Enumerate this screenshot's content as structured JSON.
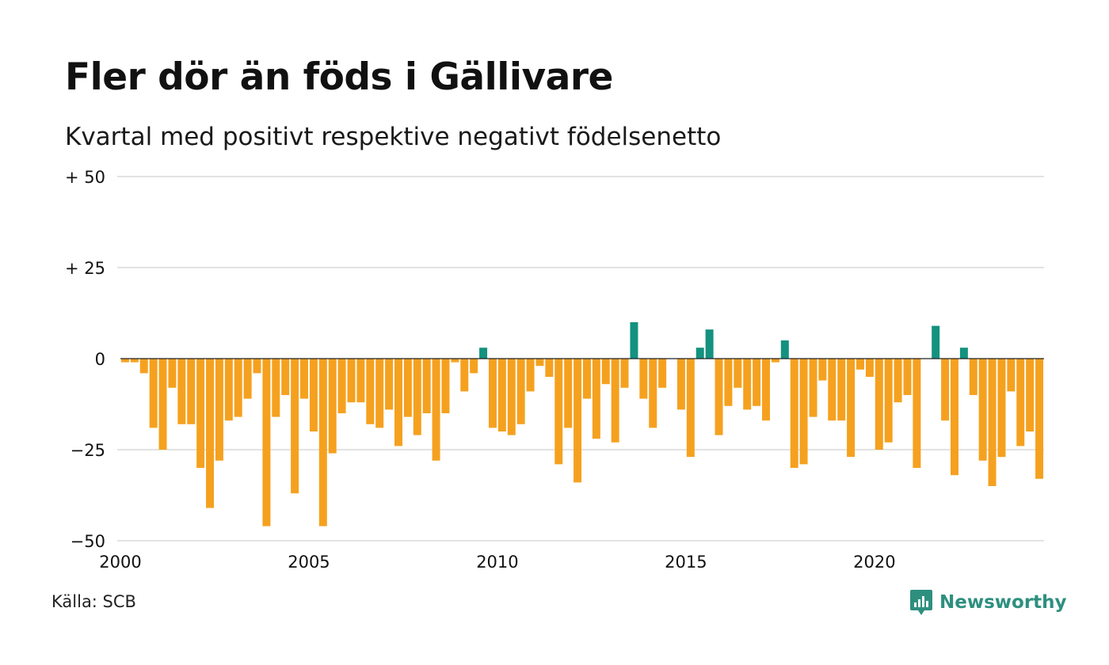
{
  "title": "Fler dör än föds i Gällivare",
  "subtitle": "Kvartal med positivt respektive negativt födelsenetto",
  "source": "Källa: SCB",
  "brand": {
    "name": "Newsworthy",
    "icon": "newsworthy-logo-icon",
    "color": "#2e8f7f"
  },
  "colors": {
    "positive": "#14917f",
    "negative": "#f5a11f",
    "grid": "#e3e3e3",
    "zero_line": "#222222"
  },
  "chart_data": {
    "type": "bar",
    "xlim": [
      2000,
      2024.5
    ],
    "ylim": [
      -50,
      50
    ],
    "grid": true,
    "y_ticks": [
      {
        "value": 50,
        "label": "+ 50"
      },
      {
        "value": 25,
        "label": "+ 25"
      },
      {
        "value": 0,
        "label": "0"
      },
      {
        "value": -25,
        "label": "−25"
      },
      {
        "value": -50,
        "label": "−50"
      }
    ],
    "x_ticks": [
      {
        "value": 2000,
        "label": "2000"
      },
      {
        "value": 2005,
        "label": "2005"
      },
      {
        "value": 2010,
        "label": "2010"
      },
      {
        "value": 2015,
        "label": "2015"
      },
      {
        "value": 2020,
        "label": "2020"
      }
    ],
    "categories": [
      "2000 K1",
      "2000 K2",
      "2000 K3",
      "2000 K4",
      "2001 K1",
      "2001 K2",
      "2001 K3",
      "2001 K4",
      "2002 K1",
      "2002 K2",
      "2002 K3",
      "2002 K4",
      "2003 K1",
      "2003 K2",
      "2003 K3",
      "2003 K4",
      "2004 K1",
      "2004 K2",
      "2004 K3",
      "2004 K4",
      "2005 K1",
      "2005 K2",
      "2005 K3",
      "2005 K4",
      "2006 K1",
      "2006 K2",
      "2006 K3",
      "2006 K4",
      "2007 K1",
      "2007 K2",
      "2007 K3",
      "2007 K4",
      "2008 K1",
      "2008 K2",
      "2008 K3",
      "2008 K4",
      "2009 K1",
      "2009 K2",
      "2009 K3",
      "2009 K4",
      "2010 K1",
      "2010 K2",
      "2010 K3",
      "2010 K4",
      "2011 K1",
      "2011 K2",
      "2011 K3",
      "2011 K4",
      "2012 K1",
      "2012 K2",
      "2012 K3",
      "2012 K4",
      "2013 K1",
      "2013 K2",
      "2013 K3",
      "2013 K4",
      "2014 K1",
      "2014 K2",
      "2014 K3",
      "2014 K4",
      "2015 K1",
      "2015 K2",
      "2015 K3",
      "2015 K4",
      "2016 K1",
      "2016 K2",
      "2016 K3",
      "2016 K4",
      "2017 K1",
      "2017 K2",
      "2017 K3",
      "2017 K4",
      "2018 K1",
      "2018 K2",
      "2018 K3",
      "2018 K4",
      "2019 K1",
      "2019 K2",
      "2019 K3",
      "2019 K4",
      "2020 K1",
      "2020 K2",
      "2020 K3",
      "2020 K4",
      "2021 K1",
      "2021 K2",
      "2021 K3",
      "2021 K4",
      "2022 K1",
      "2022 K2",
      "2022 K3",
      "2022 K4",
      "2023 K1",
      "2023 K2",
      "2023 K3",
      "2023 K4",
      "2024 K1",
      "2024 K2"
    ],
    "values": [
      -1,
      -1,
      -4,
      -19,
      -25,
      -8,
      -18,
      -18,
      -30,
      -41,
      -28,
      -17,
      -16,
      -11,
      -4,
      -46,
      -16,
      -10,
      -37,
      -11,
      -20,
      -46,
      -26,
      -15,
      -12,
      -12,
      -18,
      -19,
      -14,
      -24,
      -16,
      -21,
      -15,
      -28,
      -15,
      -1,
      -9,
      -4,
      3,
      -19,
      -20,
      -21,
      -18,
      -9,
      -2,
      -5,
      -29,
      -19,
      -34,
      -11,
      -22,
      -7,
      -23,
      -8,
      10,
      -11,
      -19,
      -8,
      0,
      -14,
      -27,
      3,
      8,
      -21,
      -13,
      -8,
      -14,
      -13,
      -17,
      -1,
      5,
      -30,
      -29,
      -16,
      -6,
      -17,
      -17,
      -27,
      -3,
      -5,
      -25,
      -23,
      -12,
      -10,
      -30,
      0,
      9,
      -17,
      -32,
      3,
      -10,
      -28,
      -35,
      -27,
      -9,
      -24,
      -20,
      -33
    ]
  }
}
